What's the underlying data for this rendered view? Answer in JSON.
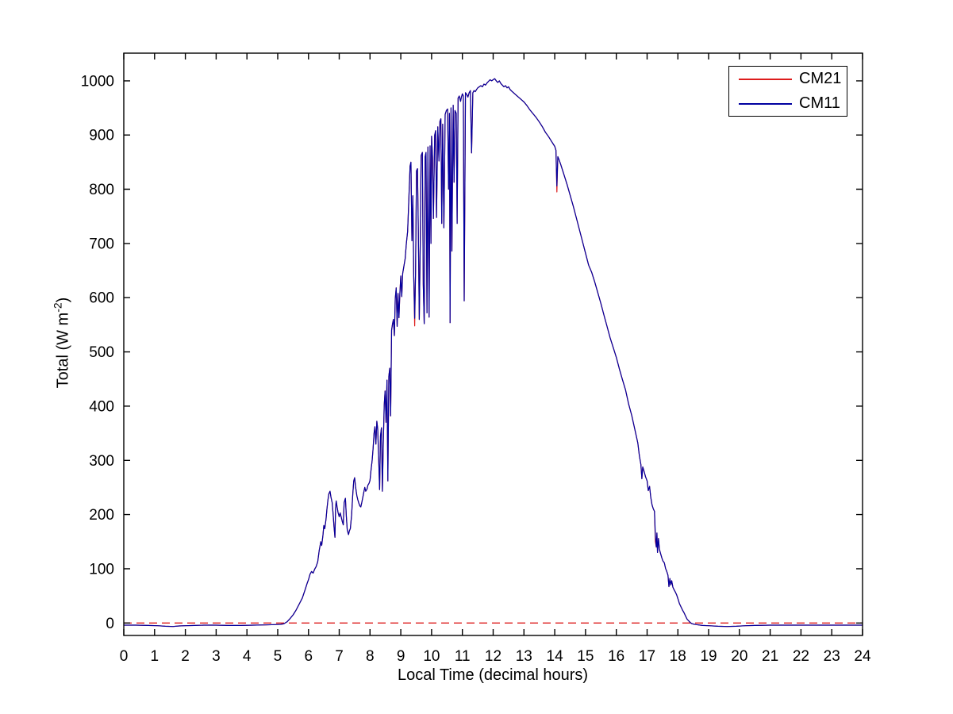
{
  "figure": {
    "background": "#ffffff",
    "axes_color": "#000000"
  },
  "chart_data": {
    "type": "line",
    "title": "",
    "xlabel": "Local Time (decimal hours)",
    "ylabel": "Total (W m-2)",
    "ylabel_parts": {
      "prefix": "Total (W m",
      "sup": "-2",
      "suffix": ")"
    },
    "xlim": [
      0,
      24
    ],
    "ylim": [
      -23,
      1051
    ],
    "xticks": [
      0,
      1,
      2,
      3,
      4,
      5,
      6,
      7,
      8,
      9,
      10,
      11,
      12,
      13,
      14,
      15,
      16,
      17,
      18,
      19,
      20,
      21,
      22,
      23,
      24
    ],
    "yticks": [
      0,
      100,
      200,
      300,
      400,
      500,
      600,
      700,
      800,
      900,
      1000
    ],
    "grid": false,
    "legend": {
      "position": "top-right",
      "entries": [
        {
          "label": "CM21",
          "color": "#dd1c1c",
          "style": "solid"
        },
        {
          "label": "CM11",
          "color": "#0000a0",
          "style": "solid"
        }
      ]
    },
    "zero_line": {
      "value": 0,
      "color": "#dd1c1c",
      "style": "dashed",
      "dash": [
        10,
        6
      ]
    },
    "series": [
      {
        "name": "CM21",
        "color": "#dd1c1c",
        "points_ref": "shared_points",
        "deviations": [
          [
            9.45,
            548
          ],
          [
            14.07,
            795
          ],
          [
            17.27,
            150
          ]
        ]
      },
      {
        "name": "CM11",
        "color": "#0000a0",
        "points_ref": "shared_points",
        "deviations": []
      }
    ],
    "shared_points": [
      [
        0,
        -4
      ],
      [
        0.4,
        -4
      ],
      [
        0.8,
        -4.5
      ],
      [
        1.1,
        -5
      ],
      [
        1.35,
        -6
      ],
      [
        1.6,
        -6.5
      ],
      [
        1.8,
        -5.5
      ],
      [
        2,
        -5
      ],
      [
        2.3,
        -4.5
      ],
      [
        2.6,
        -4
      ],
      [
        3,
        -4
      ],
      [
        3.4,
        -4.5
      ],
      [
        3.8,
        -4.5
      ],
      [
        4.2,
        -4
      ],
      [
        4.6,
        -3.5
      ],
      [
        4.9,
        -3
      ],
      [
        5.1,
        -2.5
      ],
      [
        5.2,
        -1.5
      ],
      [
        5.3,
        2
      ],
      [
        5.4,
        8
      ],
      [
        5.5,
        15
      ],
      [
        5.6,
        24
      ],
      [
        5.7,
        35
      ],
      [
        5.8,
        46
      ],
      [
        5.9,
        63
      ],
      [
        5.95,
        72
      ],
      [
        6,
        80
      ],
      [
        6.05,
        90
      ],
      [
        6.1,
        95
      ],
      [
        6.15,
        92
      ],
      [
        6.2,
        99
      ],
      [
        6.25,
        104
      ],
      [
        6.3,
        113
      ],
      [
        6.35,
        134
      ],
      [
        6.4,
        150
      ],
      [
        6.43,
        143
      ],
      [
        6.47,
        162
      ],
      [
        6.5,
        180
      ],
      [
        6.53,
        174
      ],
      [
        6.57,
        192
      ],
      [
        6.6,
        210
      ],
      [
        6.63,
        226
      ],
      [
        6.66,
        238
      ],
      [
        6.7,
        243
      ],
      [
        6.73,
        232
      ],
      [
        6.77,
        222
      ],
      [
        6.8,
        201
      ],
      [
        6.83,
        178
      ],
      [
        6.86,
        158
      ],
      [
        6.88,
        212
      ],
      [
        6.9,
        225
      ],
      [
        6.93,
        214
      ],
      [
        6.96,
        204
      ],
      [
        7,
        196
      ],
      [
        7.03,
        203
      ],
      [
        7.06,
        196
      ],
      [
        7.1,
        187
      ],
      [
        7.13,
        181
      ],
      [
        7.16,
        222
      ],
      [
        7.2,
        230
      ],
      [
        7.23,
        196
      ],
      [
        7.26,
        172
      ],
      [
        7.3,
        163
      ],
      [
        7.33,
        170
      ],
      [
        7.36,
        174
      ],
      [
        7.4,
        199
      ],
      [
        7.44,
        238
      ],
      [
        7.47,
        262
      ],
      [
        7.5,
        268
      ],
      [
        7.53,
        251
      ],
      [
        7.57,
        235
      ],
      [
        7.6,
        228
      ],
      [
        7.63,
        222
      ],
      [
        7.67,
        216
      ],
      [
        7.7,
        214
      ],
      [
        7.73,
        222
      ],
      [
        7.77,
        233
      ],
      [
        7.8,
        242
      ],
      [
        7.83,
        250
      ],
      [
        7.86,
        243
      ],
      [
        7.9,
        247
      ],
      [
        7.93,
        254
      ],
      [
        7.97,
        258
      ],
      [
        8,
        263
      ],
      [
        8.03,
        281
      ],
      [
        8.07,
        300
      ],
      [
        8.1,
        322
      ],
      [
        8.13,
        350
      ],
      [
        8.16,
        362
      ],
      [
        8.19,
        330
      ],
      [
        8.22,
        372
      ],
      [
        8.25,
        358
      ],
      [
        8.28,
        305
      ],
      [
        8.31,
        246
      ],
      [
        8.34,
        345
      ],
      [
        8.37,
        360
      ],
      [
        8.4,
        243
      ],
      [
        8.43,
        330
      ],
      [
        8.46,
        402
      ],
      [
        8.49,
        428
      ],
      [
        8.52,
        370
      ],
      [
        8.55,
        448
      ],
      [
        8.58,
        262
      ],
      [
        8.61,
        455
      ],
      [
        8.64,
        470
      ],
      [
        8.67,
        382
      ],
      [
        8.7,
        540
      ],
      [
        8.73,
        552
      ],
      [
        8.76,
        560
      ],
      [
        8.79,
        530
      ],
      [
        8.82,
        598
      ],
      [
        8.85,
        618
      ],
      [
        8.88,
        547
      ],
      [
        8.91,
        608
      ],
      [
        8.94,
        563
      ],
      [
        8.97,
        610
      ],
      [
        9,
        640
      ],
      [
        9.03,
        602
      ],
      [
        9.06,
        645
      ],
      [
        9.1,
        658
      ],
      [
        9.14,
        672
      ],
      [
        9.18,
        700
      ],
      [
        9.22,
        722
      ],
      [
        9.26,
        780
      ],
      [
        9.3,
        843
      ],
      [
        9.33,
        850
      ],
      [
        9.36,
        705
      ],
      [
        9.39,
        788
      ],
      [
        9.42,
        640
      ],
      [
        9.45,
        562
      ],
      [
        9.48,
        648
      ],
      [
        9.51,
        834
      ],
      [
        9.54,
        838
      ],
      [
        9.57,
        722
      ],
      [
        9.6,
        560
      ],
      [
        9.63,
        700
      ],
      [
        9.66,
        862
      ],
      [
        9.7,
        868
      ],
      [
        9.73,
        625
      ],
      [
        9.76,
        552
      ],
      [
        9.79,
        860
      ],
      [
        9.82,
        868
      ],
      [
        9.85,
        572
      ],
      [
        9.88,
        878
      ],
      [
        9.92,
        564
      ],
      [
        9.95,
        880
      ],
      [
        9.98,
        700
      ],
      [
        10,
        898
      ],
      [
        10.03,
        858
      ],
      [
        10.06,
        746
      ],
      [
        10.1,
        900
      ],
      [
        10.13,
        908
      ],
      [
        10.16,
        748
      ],
      [
        10.2,
        915
      ],
      [
        10.24,
        852
      ],
      [
        10.27,
        925
      ],
      [
        10.3,
        930
      ],
      [
        10.33,
        737
      ],
      [
        10.36,
        920
      ],
      [
        10.4,
        729
      ],
      [
        10.44,
        938
      ],
      [
        10.48,
        945
      ],
      [
        10.52,
        948
      ],
      [
        10.55,
        800
      ],
      [
        10.58,
        940
      ],
      [
        10.6,
        554
      ],
      [
        10.63,
        950
      ],
      [
        10.66,
        686
      ],
      [
        10.7,
        955
      ],
      [
        10.73,
        813
      ],
      [
        10.76,
        945
      ],
      [
        10.8,
        940
      ],
      [
        10.83,
        737
      ],
      [
        10.86,
        968
      ],
      [
        10.9,
        972
      ],
      [
        10.94,
        962
      ],
      [
        10.97,
        970
      ],
      [
        11,
        976
      ],
      [
        11.03,
        972
      ],
      [
        11.06,
        594
      ],
      [
        11.1,
        978
      ],
      [
        11.14,
        975
      ],
      [
        11.18,
        970
      ],
      [
        11.22,
        978
      ],
      [
        11.26,
        982
      ],
      [
        11.3,
        867
      ],
      [
        11.34,
        978
      ],
      [
        11.38,
        982
      ],
      [
        11.42,
        980
      ],
      [
        11.46,
        984
      ],
      [
        11.5,
        987
      ],
      [
        11.55,
        989
      ],
      [
        11.6,
        991
      ],
      [
        11.65,
        989
      ],
      [
        11.7,
        994
      ],
      [
        11.75,
        992
      ],
      [
        11.8,
        996
      ],
      [
        11.85,
        999
      ],
      [
        11.9,
        1002
      ],
      [
        11.95,
        1000
      ],
      [
        12,
        1002
      ],
      [
        12.05,
        1004
      ],
      [
        12.1,
        1000
      ],
      [
        12.15,
        997
      ],
      [
        12.2,
        1000
      ],
      [
        12.25,
        995
      ],
      [
        12.3,
        992
      ],
      [
        12.35,
        989
      ],
      [
        12.4,
        991
      ],
      [
        12.45,
        987
      ],
      [
        12.5,
        989
      ],
      [
        12.55,
        984
      ],
      [
        12.6,
        981
      ],
      [
        12.7,
        976
      ],
      [
        12.8,
        971
      ],
      [
        12.9,
        966
      ],
      [
        13,
        961
      ],
      [
        13.1,
        954
      ],
      [
        13.2,
        946
      ],
      [
        13.3,
        939
      ],
      [
        13.4,
        932
      ],
      [
        13.5,
        924
      ],
      [
        13.6,
        915
      ],
      [
        13.7,
        905
      ],
      [
        13.8,
        897
      ],
      [
        13.9,
        888
      ],
      [
        14,
        879
      ],
      [
        14.04,
        872
      ],
      [
        14.07,
        806
      ],
      [
        14.1,
        860
      ],
      [
        14.15,
        853
      ],
      [
        14.2,
        845
      ],
      [
        14.3,
        827
      ],
      [
        14.4,
        809
      ],
      [
        14.5,
        789
      ],
      [
        14.6,
        769
      ],
      [
        14.7,
        748
      ],
      [
        14.8,
        726
      ],
      [
        14.9,
        704
      ],
      [
        15,
        682
      ],
      [
        15.1,
        660
      ],
      [
        15.2,
        647
      ],
      [
        15.3,
        629
      ],
      [
        15.4,
        609
      ],
      [
        15.5,
        589
      ],
      [
        15.6,
        568
      ],
      [
        15.7,
        547
      ],
      [
        15.8,
        526
      ],
      [
        15.9,
        508
      ],
      [
        16,
        490
      ],
      [
        16.1,
        469
      ],
      [
        16.2,
        449
      ],
      [
        16.3,
        430
      ],
      [
        16.4,
        404
      ],
      [
        16.5,
        383
      ],
      [
        16.6,
        358
      ],
      [
        16.7,
        332
      ],
      [
        16.75,
        308
      ],
      [
        16.8,
        292
      ],
      [
        16.83,
        266
      ],
      [
        16.86,
        288
      ],
      [
        16.9,
        280
      ],
      [
        16.95,
        270
      ],
      [
        17,
        262
      ],
      [
        17.04,
        244
      ],
      [
        17.08,
        252
      ],
      [
        17.12,
        232
      ],
      [
        17.16,
        218
      ],
      [
        17.2,
        211
      ],
      [
        17.24,
        206
      ],
      [
        17.27,
        162
      ],
      [
        17.3,
        140
      ],
      [
        17.32,
        166
      ],
      [
        17.34,
        130
      ],
      [
        17.37,
        156
      ],
      [
        17.4,
        136
      ],
      [
        17.44,
        128
      ],
      [
        17.48,
        120
      ],
      [
        17.52,
        114
      ],
      [
        17.56,
        111
      ],
      [
        17.6,
        101
      ],
      [
        17.64,
        95
      ],
      [
        17.68,
        88
      ],
      [
        17.71,
        67
      ],
      [
        17.74,
        82
      ],
      [
        17.77,
        70
      ],
      [
        17.8,
        78
      ],
      [
        17.84,
        66
      ],
      [
        17.88,
        61
      ],
      [
        17.92,
        57
      ],
      [
        17.96,
        52
      ],
      [
        18,
        45
      ],
      [
        18.05,
        36
      ],
      [
        18.1,
        30
      ],
      [
        18.15,
        24
      ],
      [
        18.2,
        19
      ],
      [
        18.25,
        13
      ],
      [
        18.3,
        7
      ],
      [
        18.35,
        4
      ],
      [
        18.4,
        1
      ],
      [
        18.45,
        -1
      ],
      [
        18.5,
        -2
      ],
      [
        18.6,
        -3
      ],
      [
        18.8,
        -4.5
      ],
      [
        19,
        -5
      ],
      [
        19.3,
        -6
      ],
      [
        19.6,
        -6.5
      ],
      [
        19.9,
        -6
      ],
      [
        20.2,
        -5
      ],
      [
        20.5,
        -4.5
      ],
      [
        21,
        -4
      ],
      [
        21.5,
        -4
      ],
      [
        22,
        -4
      ],
      [
        22.5,
        -4
      ],
      [
        23,
        -4
      ],
      [
        23.5,
        -4
      ],
      [
        24,
        -4
      ]
    ]
  }
}
